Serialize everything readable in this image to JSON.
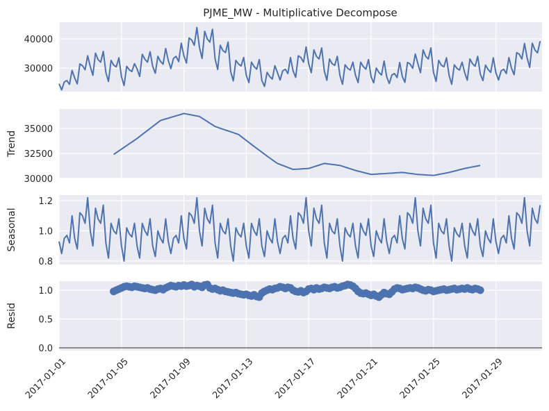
{
  "chart_data": {
    "type": "decomposition",
    "title": "PJME_MW - Multiplicative Decompose",
    "x": [
      0,
      4,
      8,
      12,
      16,
      20,
      24,
      28,
      32,
      36,
      40,
      44,
      48,
      52,
      56,
      60,
      64,
      68,
      72,
      76,
      80,
      84,
      88,
      92,
      96,
      100,
      104,
      108,
      112,
      116,
      120,
      124,
      128,
      132,
      136,
      140,
      144,
      148,
      152,
      156,
      160,
      164,
      168,
      172,
      176,
      180,
      184,
      188,
      192,
      196,
      200,
      204,
      208,
      212,
      216,
      220,
      224,
      228,
      232,
      236,
      240,
      244,
      248,
      252,
      256,
      260,
      264,
      268,
      272,
      276,
      280,
      284,
      288,
      292,
      296,
      300,
      304,
      308,
      312,
      316,
      320,
      324,
      328,
      332,
      336,
      340,
      344,
      348,
      352,
      356,
      360,
      364,
      368,
      372,
      376,
      380,
      384,
      388,
      392,
      396,
      400,
      404,
      408,
      412,
      416,
      420,
      424,
      428,
      432,
      436,
      440,
      444,
      448,
      452,
      456,
      460,
      464,
      468,
      472,
      476,
      480,
      484,
      488,
      492,
      496,
      500,
      504,
      508,
      512,
      516,
      520,
      524,
      528,
      532,
      536,
      540,
      544,
      548,
      552,
      556,
      560,
      564,
      568,
      572,
      576,
      580,
      584,
      588,
      592,
      596,
      600,
      604,
      608,
      612,
      616,
      620,
      624,
      628,
      632,
      636,
      640,
      644,
      648,
      652,
      656,
      660,
      664,
      668,
      672,
      676,
      680,
      684,
      688,
      692,
      696,
      700,
      704,
      708,
      712,
      716,
      720,
      724,
      728,
      732,
      736,
      740
    ],
    "xlim": [
      0,
      743
    ],
    "xticks": [
      {
        "value": 0,
        "label": "2017-01-01"
      },
      {
        "value": 96,
        "label": "2017-01-05"
      },
      {
        "value": 192,
        "label": "2017-01-09"
      },
      {
        "value": 288,
        "label": "2017-01-13"
      },
      {
        "value": 384,
        "label": "2017-01-17"
      },
      {
        "value": 480,
        "label": "2017-01-21"
      },
      {
        "value": 576,
        "label": "2017-01-25"
      },
      {
        "value": 672,
        "label": "2017-01-29"
      }
    ],
    "grid": true,
    "panels": [
      {
        "type": "line",
        "color": "#4c72b0",
        "ylim": [
          21900,
          45700
        ],
        "yticks": [
          30000,
          40000
        ],
        "values": [
          24600,
          22500,
          25200,
          25700,
          24400,
          29200,
          26600,
          24600,
          31400,
          30800,
          29400,
          34200,
          30500,
          27500,
          35100,
          32900,
          32000,
          35700,
          28500,
          25400,
          32600,
          31000,
          30400,
          33500,
          27000,
          24000,
          30600,
          29400,
          28800,
          31500,
          29700,
          27100,
          34700,
          33000,
          32000,
          35600,
          30600,
          28200,
          34000,
          32300,
          31300,
          36700,
          32600,
          29800,
          33300,
          34000,
          32200,
          38500,
          34200,
          31700,
          40300,
          39600,
          37800,
          43900,
          37000,
          33300,
          42600,
          40000,
          38900,
          43300,
          33100,
          29500,
          37800,
          36000,
          35300,
          38900,
          28800,
          25600,
          32600,
          31400,
          30700,
          33600,
          27500,
          25000,
          32000,
          30500,
          29600,
          32900,
          25700,
          23700,
          28500,
          27100,
          26200,
          30800,
          28400,
          25900,
          29000,
          29600,
          28100,
          33600,
          29000,
          26800,
          34200,
          33600,
          32000,
          37200,
          31500,
          28400,
          36200,
          34000,
          33100,
          36900,
          29000,
          25800,
          33100,
          31500,
          30900,
          34000,
          27500,
          24400,
          31100,
          29900,
          29300,
          32000,
          27500,
          25000,
          32000,
          30500,
          29600,
          32900,
          27000,
          24900,
          30000,
          28500,
          27600,
          32400,
          27000,
          24700,
          27600,
          28100,
          26700,
          31900,
          27100,
          25100,
          31900,
          31400,
          29900,
          34800,
          31500,
          28400,
          36200,
          34000,
          33100,
          36900,
          28500,
          25400,
          32600,
          31000,
          30400,
          33500,
          27500,
          24400,
          31100,
          29900,
          29300,
          32000,
          28400,
          25800,
          33100,
          31500,
          30600,
          34000,
          27900,
          25700,
          31000,
          29500,
          28500,
          33500,
          28400,
          25900,
          29000,
          29600,
          28100,
          33600,
          29900,
          27700,
          35300,
          34700,
          33100,
          38400,
          33500,
          30200,
          38500,
          36200,
          35200,
          39200
        ]
      },
      {
        "type": "line",
        "ylabel": "Trend",
        "color": "#4c72b0",
        "ylim": [
          30000,
          36950
        ],
        "yticks": [
          30000,
          32500,
          35000
        ],
        "values": [
          null,
          null,
          null,
          null,
          null,
          null,
          null,
          null,
          null,
          null,
          null,
          null,
          null,
          null,
          null,
          null,
          null,
          null,
          null,
          null,
          null,
          32400,
          32580,
          32760,
          32930,
          33110,
          33290,
          33470,
          33640,
          33820,
          34000,
          34200,
          34400,
          34600,
          34800,
          35000,
          35200,
          35400,
          35600,
          35800,
          35880,
          35960,
          36030,
          36110,
          36190,
          36270,
          36340,
          36420,
          36500,
          36450,
          36400,
          36350,
          36300,
          36250,
          36200,
          36030,
          35870,
          35700,
          35530,
          35370,
          35200,
          35110,
          35020,
          34930,
          34840,
          34760,
          34670,
          34580,
          34490,
          34400,
          34200,
          34000,
          33800,
          33600,
          33400,
          33200,
          33010,
          32820,
          32630,
          32430,
          32240,
          32050,
          31860,
          31670,
          31500,
          31400,
          31300,
          31200,
          31100,
          31000,
          30900,
          30920,
          30930,
          30950,
          30970,
          30980,
          31000,
          31080,
          31170,
          31250,
          31330,
          31420,
          31500,
          31470,
          31430,
          31400,
          31370,
          31330,
          31300,
          31220,
          31130,
          31050,
          30970,
          30880,
          30800,
          30730,
          30670,
          30600,
          30530,
          30470,
          30400,
          30420,
          30430,
          30450,
          30470,
          30480,
          30500,
          30520,
          30530,
          30550,
          30570,
          30580,
          30600,
          30570,
          30530,
          30500,
          30470,
          30430,
          30400,
          30380,
          30370,
          30350,
          30330,
          30320,
          30300,
          30350,
          30400,
          30450,
          30500,
          30550,
          30600,
          30670,
          30730,
          30800,
          30870,
          30930,
          31000,
          31050,
          31100,
          31150,
          31200,
          31250,
          31300,
          null,
          null,
          null,
          null,
          null,
          null,
          null,
          null,
          null,
          null,
          null,
          null,
          null,
          null,
          null,
          null,
          null,
          null,
          null,
          null,
          null,
          null,
          null
        ]
      },
      {
        "type": "line",
        "ylabel": "Seasonal",
        "color": "#4c72b0",
        "ylim": [
          0.777,
          1.237
        ],
        "yticks": [
          0.8,
          {
            "value": 1.0,
            "label": "1.0"
          },
          1.2
        ],
        "values": [
          0.93,
          0.85,
          0.95,
          0.97,
          0.92,
          1.1,
          0.95,
          0.88,
          1.12,
          1.1,
          1.05,
          1.22,
          1.0,
          0.9,
          1.15,
          1.08,
          1.05,
          1.17,
          0.92,
          0.82,
          1.05,
          1.0,
          0.98,
          1.08,
          0.9,
          0.8,
          1.02,
          0.98,
          0.96,
          1.05,
          0.9,
          0.82,
          1.05,
          1.0,
          0.97,
          1.08,
          0.9,
          0.83,
          1.0,
          0.95,
          0.92,
          1.08,
          0.93,
          0.85,
          0.95,
          0.97,
          0.92,
          1.1,
          0.95,
          0.88,
          1.12,
          1.1,
          1.05,
          1.22,
          1.0,
          0.9,
          1.15,
          1.08,
          1.05,
          1.17,
          0.92,
          0.82,
          1.05,
          1.0,
          0.98,
          1.08,
          0.9,
          0.8,
          1.02,
          0.98,
          0.96,
          1.05,
          0.9,
          0.82,
          1.05,
          1.0,
          0.97,
          1.08,
          0.9,
          0.83,
          1.0,
          0.95,
          0.92,
          1.08,
          0.93,
          0.85,
          0.95,
          0.97,
          0.92,
          1.1,
          0.95,
          0.88,
          1.12,
          1.1,
          1.05,
          1.22,
          1.0,
          0.9,
          1.15,
          1.08,
          1.05,
          1.17,
          0.92,
          0.82,
          1.05,
          1.0,
          0.98,
          1.08,
          0.9,
          0.8,
          1.02,
          0.98,
          0.96,
          1.05,
          0.9,
          0.82,
          1.05,
          1.0,
          0.97,
          1.08,
          0.9,
          0.83,
          1.0,
          0.95,
          0.92,
          1.08,
          0.93,
          0.85,
          0.95,
          0.97,
          0.92,
          1.1,
          0.95,
          0.88,
          1.12,
          1.1,
          1.05,
          1.22,
          1.0,
          0.9,
          1.15,
          1.08,
          1.05,
          1.17,
          0.92,
          0.82,
          1.05,
          1.0,
          0.98,
          1.08,
          0.9,
          0.8,
          1.02,
          0.98,
          0.96,
          1.05,
          0.9,
          0.82,
          1.05,
          1.0,
          0.97,
          1.08,
          0.9,
          0.83,
          1.0,
          0.95,
          0.92,
          1.08,
          0.93,
          0.85,
          0.95,
          0.97,
          0.92,
          1.1,
          0.95,
          0.88,
          1.12,
          1.1,
          1.05,
          1.22,
          1.0,
          0.9,
          1.15,
          1.08,
          1.05,
          1.17
        ]
      },
      {
        "type": "scatter",
        "ylabel": "Resid",
        "color": "#4c72b0",
        "baseline": 0,
        "ylim": [
          -0.048,
          1.157
        ],
        "yticks": [
          {
            "value": 0,
            "label": "0.0"
          },
          0.5,
          {
            "value": 1,
            "label": "1.0"
          }
        ],
        "values": [
          null,
          null,
          null,
          null,
          null,
          null,
          null,
          null,
          null,
          null,
          null,
          null,
          null,
          null,
          null,
          null,
          null,
          null,
          null,
          null,
          null,
          0.98,
          1.0,
          1.02,
          1.04,
          1.06,
          1.07,
          1.06,
          1.05,
          1.07,
          1.06,
          1.05,
          1.04,
          1.03,
          1.04,
          1.02,
          1.01,
          1.0,
          1.02,
          1.03,
          1.01,
          1.04,
          1.06,
          1.08,
          1.07,
          1.06,
          1.08,
          1.07,
          1.09,
          1.07,
          1.08,
          1.1,
          1.06,
          1.08,
          1.07,
          1.05,
          1.09,
          1.1,
          1.04,
          1.02,
          1.03,
          1.01,
          0.99,
          1.0,
          0.98,
          0.97,
          0.96,
          0.95,
          0.96,
          0.94,
          0.93,
          0.92,
          0.93,
          0.91,
          0.9,
          0.92,
          0.89,
          0.88,
          0.95,
          0.98,
          1.0,
          1.02,
          1.01,
          1.03,
          1.04,
          1.06,
          1.05,
          1.03,
          1.05,
          1.04,
          1.0,
          0.98,
          0.97,
          0.99,
          0.96,
          0.98,
          1.02,
          1.03,
          1.01,
          1.04,
          1.02,
          1.03,
          1.05,
          1.04,
          1.03,
          1.05,
          1.06,
          1.04,
          1.05,
          1.07,
          1.08,
          1.1,
          1.09,
          1.07,
          1.03,
          0.98,
          0.95,
          0.94,
          0.95,
          0.93,
          0.91,
          0.93,
          0.9,
          0.88,
          0.92,
          0.96,
          0.94,
          0.93,
          0.97,
          1.02,
          1.04,
          1.03,
          1.01,
          1.02,
          1.03,
          1.04,
          1.03,
          1.05,
          1.04,
          1.02,
          1.0,
          0.99,
          1.01,
          1.0,
          0.98,
          0.99,
          1.0,
          1.01,
          1.02,
          1.0,
          1.01,
          1.02,
          1.03,
          1.01,
          1.02,
          1.03,
          1.02,
          1.04,
          1.02,
          1.01,
          1.03,
          1.02,
          1.0,
          null,
          null,
          null,
          null,
          null,
          null,
          null,
          null,
          null,
          null,
          null,
          null,
          null,
          null,
          null,
          null,
          null,
          null,
          null,
          null,
          null,
          null,
          null
        ]
      }
    ]
  }
}
